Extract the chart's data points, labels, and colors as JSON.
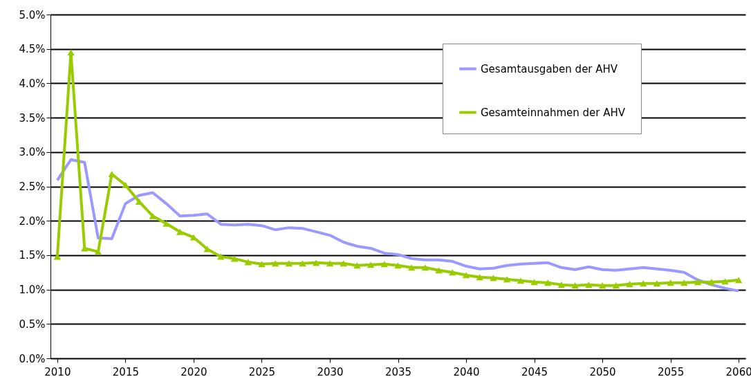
{
  "chart_data": {
    "type": "line",
    "x": [
      2010,
      2011,
      2012,
      2013,
      2014,
      2015,
      2016,
      2017,
      2018,
      2019,
      2020,
      2021,
      2022,
      2023,
      2024,
      2025,
      2026,
      2027,
      2028,
      2029,
      2030,
      2031,
      2032,
      2033,
      2034,
      2035,
      2036,
      2037,
      2038,
      2039,
      2040,
      2041,
      2042,
      2043,
      2044,
      2045,
      2046,
      2047,
      2048,
      2049,
      2050,
      2051,
      2052,
      2053,
      2054,
      2055,
      2056,
      2057,
      2058,
      2059,
      2060
    ],
    "series": [
      {
        "name": "Gesamtausgaben der AHV",
        "color": "#9999ff",
        "marker": "none",
        "values": [
          2.59,
          2.89,
          2.85,
          1.75,
          1.74,
          2.25,
          2.37,
          2.41,
          2.25,
          2.07,
          2.08,
          2.1,
          1.95,
          1.94,
          1.95,
          1.93,
          1.87,
          1.9,
          1.89,
          1.84,
          1.79,
          1.69,
          1.63,
          1.6,
          1.53,
          1.51,
          1.45,
          1.43,
          1.43,
          1.41,
          1.34,
          1.3,
          1.31,
          1.35,
          1.37,
          1.38,
          1.39,
          1.32,
          1.29,
          1.33,
          1.29,
          1.28,
          1.3,
          1.32,
          1.3,
          1.28,
          1.25,
          1.14,
          1.07,
          1.02,
          0.98
        ]
      },
      {
        "name": "Gesamteinnahmen der AHV",
        "color": "#99cc00",
        "marker": "triangle",
        "values": [
          1.48,
          4.45,
          1.6,
          1.55,
          2.68,
          2.52,
          2.28,
          2.07,
          1.96,
          1.84,
          1.76,
          1.59,
          1.48,
          1.45,
          1.4,
          1.37,
          1.38,
          1.38,
          1.38,
          1.39,
          1.38,
          1.38,
          1.35,
          1.36,
          1.37,
          1.35,
          1.32,
          1.32,
          1.28,
          1.25,
          1.21,
          1.18,
          1.17,
          1.15,
          1.13,
          1.11,
          1.1,
          1.07,
          1.06,
          1.07,
          1.06,
          1.06,
          1.08,
          1.09,
          1.09,
          1.1,
          1.1,
          1.11,
          1.11,
          1.12,
          1.14
        ]
      }
    ],
    "xlim": [
      2009.5,
      2060.5
    ],
    "xticks": [
      2010,
      2015,
      2020,
      2025,
      2030,
      2035,
      2040,
      2045,
      2050,
      2055,
      2060
    ],
    "ylim": [
      0,
      5
    ],
    "yticks": [
      {
        "value": 0,
        "label": "0.0%"
      },
      {
        "value": 0.5,
        "label": "0.5%"
      },
      {
        "value": 1,
        "label": "1.0%"
      },
      {
        "value": 1.5,
        "label": "1.5%"
      },
      {
        "value": 2,
        "label": "2.0%"
      },
      {
        "value": 2.5,
        "label": "2.5%"
      },
      {
        "value": 3,
        "label": "3.0%"
      },
      {
        "value": 3.5,
        "label": "3.5%"
      },
      {
        "value": 4,
        "label": "4.0%"
      },
      {
        "value": 4.5,
        "label": "4.5%"
      },
      {
        "value": 5,
        "label": "5.0%"
      }
    ],
    "grid": "y",
    "legend": "top right"
  }
}
